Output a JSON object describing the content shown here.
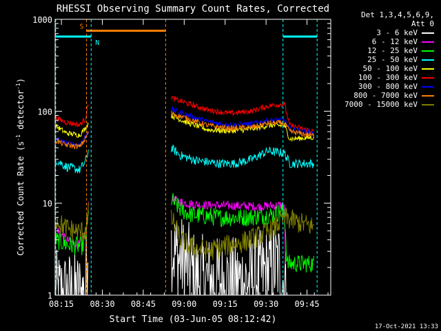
{
  "chart_data": {
    "type": "line",
    "title": "RHESSI Observing Summary Count Rates, Corrected",
    "xlabel": "Start Time (03-Jun-05 08:12:42)",
    "ylabel": "Corrected Count Rate (s-1 detector-1)",
    "ylabel_parts": {
      "main": "Corrected Count Rate (s",
      "sup1": "-1",
      "mid": " detector",
      "sup2": "-1",
      "end": ")"
    },
    "yscale": "log",
    "ylim": [
      1,
      1000
    ],
    "xlim_min": [
      0,
      101
    ],
    "x_ticks": [
      {
        "min": 2.3,
        "label": "08:15"
      },
      {
        "min": 17.3,
        "label": "08:30"
      },
      {
        "min": 32.3,
        "label": "08:45"
      },
      {
        "min": 47.3,
        "label": "09:00"
      },
      {
        "min": 62.3,
        "label": "09:15"
      },
      {
        "min": 77.3,
        "label": "09:30"
      },
      {
        "min": 92.3,
        "label": "09:45"
      }
    ],
    "y_ticks": [
      {
        "value": 1,
        "label": "1"
      },
      {
        "value": 10,
        "label": "10"
      },
      {
        "value": 100,
        "label": "100"
      },
      {
        "value": 1000,
        "label": "1000"
      }
    ],
    "legend_header": [
      "Det 1,3,4,5,6,9,",
      "Att 0"
    ],
    "series": [
      {
        "name": "3 - 6 keV",
        "color": "#ffffff",
        "noise": 0.5,
        "points": [
          [
            0,
            1
          ],
          [
            10.5,
            1
          ],
          [
            11.2,
            1.2
          ],
          [
            11.8,
            3
          ],
          [
            12.3,
            6
          ],
          [
            42.5,
            3.5
          ],
          [
            45,
            2.5
          ],
          [
            48,
            2.2
          ],
          [
            50,
            1.8
          ],
          [
            52,
            1.5
          ],
          [
            60,
            1.4
          ],
          [
            70,
            1.4
          ],
          [
            78,
            1.8
          ],
          [
            82,
            2.2
          ],
          [
            85,
            1
          ]
        ]
      },
      {
        "name": "6 - 12 keV",
        "color": "#ff00ff",
        "noise": 0.05,
        "points": [
          [
            0,
            5.5
          ],
          [
            4,
            4
          ],
          [
            9,
            3.5
          ],
          [
            11.5,
            5
          ],
          [
            12.3,
            11
          ],
          [
            42.5,
            11
          ],
          [
            48,
            10
          ],
          [
            55,
            9.5
          ],
          [
            65,
            9.4
          ],
          [
            75,
            9.2
          ],
          [
            82,
            9.5
          ],
          [
            84,
            9.5
          ],
          [
            84.6,
            1
          ]
        ]
      },
      {
        "name": "12 - 25 keV",
        "color": "#00ff00",
        "noise": 0.1,
        "points": [
          [
            0,
            4
          ],
          [
            5,
            3.5
          ],
          [
            10,
            3.4
          ],
          [
            11.5,
            4.5
          ],
          [
            12.3,
            8
          ],
          [
            42.5,
            11
          ],
          [
            46,
            8.5
          ],
          [
            50,
            7.5
          ],
          [
            60,
            7
          ],
          [
            70,
            7
          ],
          [
            80,
            7.5
          ],
          [
            84,
            8.5
          ],
          [
            85,
            2.2
          ],
          [
            95,
            2.2
          ]
        ]
      },
      {
        "name": "25 - 50 keV",
        "color": "#00ffff",
        "noise": 0.05,
        "points": [
          [
            0,
            30
          ],
          [
            4,
            25
          ],
          [
            9,
            23
          ],
          [
            11,
            28
          ],
          [
            12.3,
            38
          ],
          [
            42.5,
            40
          ],
          [
            46,
            33
          ],
          [
            52,
            29
          ],
          [
            60,
            27
          ],
          [
            66,
            27
          ],
          [
            72,
            30
          ],
          [
            78,
            37
          ],
          [
            84,
            35
          ],
          [
            86,
            27
          ],
          [
            95,
            27
          ]
        ]
      },
      {
        "name": "50 - 100 keV",
        "color": "#ffff00",
        "noise": 0.03,
        "points": [
          [
            0,
            70
          ],
          [
            4,
            58
          ],
          [
            9,
            55
          ],
          [
            11,
            65
          ],
          [
            12.3,
            75
          ],
          [
            42.5,
            90
          ],
          [
            48,
            76
          ],
          [
            56,
            63
          ],
          [
            64,
            61
          ],
          [
            72,
            64
          ],
          [
            78,
            70
          ],
          [
            84,
            70
          ],
          [
            86,
            50
          ],
          [
            95,
            52
          ]
        ]
      },
      {
        "name": "100 - 300 keV",
        "color": "#ff0000",
        "noise": 0.03,
        "points": [
          [
            0,
            85
          ],
          [
            4,
            76
          ],
          [
            9,
            71
          ],
          [
            11,
            82
          ],
          [
            12.3,
            125
          ],
          [
            42.5,
            140
          ],
          [
            48,
            123
          ],
          [
            56,
            103
          ],
          [
            64,
            95
          ],
          [
            72,
            100
          ],
          [
            78,
            114
          ],
          [
            84,
            120
          ],
          [
            86,
            70
          ],
          [
            95,
            60
          ]
        ]
      },
      {
        "name": "300 - 800 keV",
        "color": "#0000ff",
        "noise": 0.03,
        "points": [
          [
            0,
            50
          ],
          [
            4,
            45
          ],
          [
            9,
            43
          ],
          [
            11,
            53
          ],
          [
            12.3,
            62
          ],
          [
            42.5,
            105
          ],
          [
            48,
            92
          ],
          [
            56,
            77
          ],
          [
            64,
            71
          ],
          [
            72,
            73
          ],
          [
            78,
            80
          ],
          [
            84,
            80
          ],
          [
            86,
            64
          ],
          [
            95,
            57
          ]
        ]
      },
      {
        "name": "800 - 7000 keV",
        "color": "#ff8000",
        "noise": 0.03,
        "points": [
          [
            0,
            48
          ],
          [
            4,
            43
          ],
          [
            9,
            41
          ],
          [
            11,
            50
          ],
          [
            12.3,
            60
          ],
          [
            42.5,
            95
          ],
          [
            48,
            84
          ],
          [
            56,
            70
          ],
          [
            64,
            65
          ],
          [
            72,
            67
          ],
          [
            78,
            74
          ],
          [
            84,
            75
          ],
          [
            86,
            60
          ],
          [
            95,
            54
          ]
        ]
      },
      {
        "name": "7000 - 15000 keV",
        "color": "#808000",
        "noise": 0.12,
        "points": [
          [
            0,
            7
          ],
          [
            3,
            5.5
          ],
          [
            9,
            4.8
          ],
          [
            11,
            5.2
          ],
          [
            12.3,
            8
          ],
          [
            42.5,
            7
          ],
          [
            46,
            4
          ],
          [
            50,
            3.3
          ],
          [
            56,
            3
          ],
          [
            62,
            3.4
          ],
          [
            68,
            3.7
          ],
          [
            74,
            4.3
          ],
          [
            80,
            5.3
          ],
          [
            84,
            7
          ],
          [
            88,
            6.3
          ],
          [
            95,
            5.5
          ]
        ]
      }
    ],
    "annotations": [
      {
        "label": "S",
        "color": "#ff8000",
        "style": "dashed",
        "x_lines": [
          11.5,
          40.5
        ],
        "bar_level": 750
      },
      {
        "label": "N",
        "color": "#00ffff",
        "style": "dashed",
        "x_lines": [
          13.2,
          0.2,
          83.5,
          96
        ],
        "bar_level": 650
      }
    ],
    "footer_date": "17-Oct-2021 13:33"
  }
}
